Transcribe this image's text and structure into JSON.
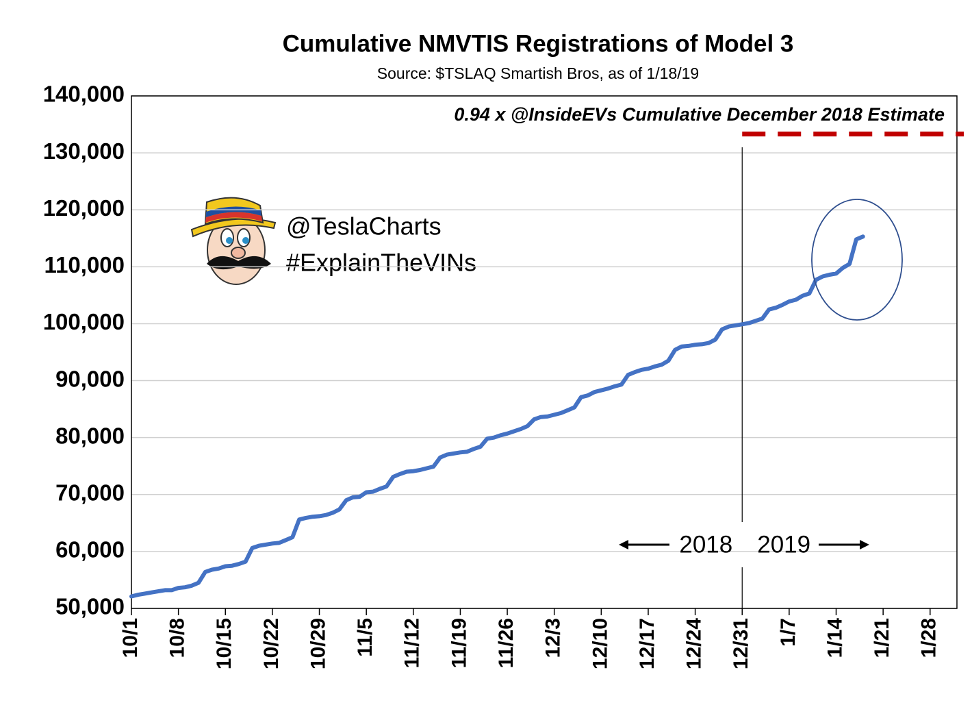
{
  "chart_data": {
    "type": "line",
    "title": "Cumulative NMVTIS Registrations of Model 3",
    "subtitle": "Source: $TSLAQ Smartish Bros, as of 1/18/19",
    "color": "#4472c4",
    "x": [
      0,
      1,
      2,
      3,
      4,
      5,
      6,
      7,
      8,
      9,
      10,
      11,
      12,
      13,
      14,
      15,
      16,
      17,
      18,
      19,
      20,
      21,
      22,
      23,
      24,
      25,
      26,
      27,
      28,
      29,
      30,
      31,
      32,
      33,
      34,
      35,
      36,
      37,
      38,
      39,
      40,
      41,
      42,
      43,
      44,
      45,
      46,
      47,
      48,
      49,
      50,
      51,
      52,
      53,
      54,
      55,
      56,
      57,
      58,
      59,
      60,
      61,
      62,
      63,
      64,
      65,
      66,
      67,
      68,
      69,
      70,
      71,
      72,
      73,
      74,
      75,
      76,
      77,
      78,
      79,
      80,
      81,
      82,
      83,
      84,
      85,
      86,
      87,
      88,
      89,
      90,
      91,
      92,
      93,
      94,
      95,
      96,
      97,
      98,
      99,
      100,
      101,
      102,
      103,
      104,
      105,
      106,
      107,
      108,
      109
    ],
    "values": [
      52100,
      52400,
      52600,
      52800,
      53000,
      53200,
      53200,
      53600,
      53700,
      54000,
      54500,
      56400,
      56800,
      57000,
      57400,
      57500,
      57800,
      58200,
      60600,
      61000,
      61200,
      61400,
      61500,
      62000,
      62500,
      65600,
      65900,
      66100,
      66200,
      66400,
      66800,
      67400,
      69000,
      69500,
      69600,
      70400,
      70500,
      71000,
      71400,
      73100,
      73600,
      74000,
      74100,
      74300,
      74600,
      74900,
      76500,
      77000,
      77200,
      77400,
      77500,
      78000,
      78400,
      79800,
      80000,
      80400,
      80700,
      81100,
      81500,
      82000,
      83200,
      83600,
      83700,
      84000,
      84300,
      84800,
      85300,
      87100,
      87400,
      88000,
      88300,
      88600,
      89000,
      89300,
      91000,
      91500,
      91900,
      92100,
      92500,
      92800,
      93500,
      95400,
      96000,
      96100,
      96300,
      96400,
      96600,
      97200,
      99000,
      99500,
      99700,
      99900,
      100100,
      100500,
      100900,
      102500,
      102800,
      103300,
      103900,
      104200,
      104900,
      105300,
      107700,
      108300,
      108600,
      108800,
      109800,
      110500,
      114800,
      115300
    ],
    "xlim": [
      0,
      123
    ],
    "xticks": [
      {
        "value": 0,
        "label": "10/1"
      },
      {
        "value": 7,
        "label": "10/8"
      },
      {
        "value": 14,
        "label": "10/15"
      },
      {
        "value": 21,
        "label": "10/22"
      },
      {
        "value": 28,
        "label": "10/29"
      },
      {
        "value": 35,
        "label": "11/5"
      },
      {
        "value": 42,
        "label": "11/12"
      },
      {
        "value": 49,
        "label": "11/19"
      },
      {
        "value": 56,
        "label": "11/26"
      },
      {
        "value": 63,
        "label": "12/3"
      },
      {
        "value": 70,
        "label": "12/10"
      },
      {
        "value": 77,
        "label": "12/17"
      },
      {
        "value": 84,
        "label": "12/24"
      },
      {
        "value": 91,
        "label": "12/31"
      },
      {
        "value": 98,
        "label": "1/7"
      },
      {
        "value": 105,
        "label": "1/14"
      },
      {
        "value": 112,
        "label": "1/21"
      },
      {
        "value": 119,
        "label": "1/28"
      }
    ],
    "ylim": [
      50000,
      140000
    ],
    "yticks": [
      {
        "value": 50000,
        "label": "50,000"
      },
      {
        "value": 60000,
        "label": "60,000"
      },
      {
        "value": 70000,
        "label": "70,000"
      },
      {
        "value": 80000,
        "label": "80,000"
      },
      {
        "value": 90000,
        "label": "90,000"
      },
      {
        "value": 100000,
        "label": "100,000"
      },
      {
        "value": 110000,
        "label": "110,000"
      },
      {
        "value": 120000,
        "label": "120,000"
      },
      {
        "value": 130000,
        "label": "130,000"
      },
      {
        "value": 140000,
        "label": "140,000"
      }
    ],
    "grid": true,
    "reference_line": {
      "label": "0.94 x @InsideEVs Cumulative  December 2018 Estimate",
      "value": 133300,
      "x_start": 91,
      "color": "#c00000"
    },
    "divider_x": 91,
    "annotations": {
      "handle": "@TeslaCharts",
      "hashtag": "#ExplainTheVINs",
      "left_year": "2018",
      "right_year": "2019"
    }
  }
}
